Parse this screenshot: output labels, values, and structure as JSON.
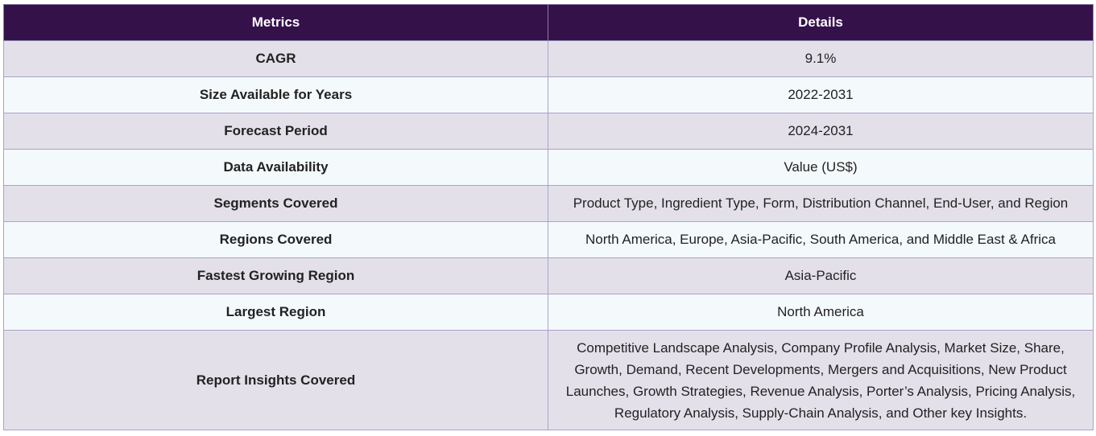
{
  "table": {
    "headers": [
      "Metrics",
      "Details"
    ],
    "rows": [
      {
        "metric": "CAGR",
        "details": "9.1%"
      },
      {
        "metric": "Size Available for Years",
        "details": "2022-2031"
      },
      {
        "metric": "Forecast Period",
        "details": "2024-2031"
      },
      {
        "metric": "Data Availability",
        "details": "Value (US$)"
      },
      {
        "metric": "Segments Covered",
        "details": "Product Type, Ingredient Type, Form, Distribution Channel, End-User, and Region"
      },
      {
        "metric": "Regions Covered",
        "details": "North America, Europe, Asia-Pacific, South America, and Middle East & Africa"
      },
      {
        "metric": "Fastest Growing Region",
        "details": "Asia-Pacific"
      },
      {
        "metric": "Largest Region",
        "details": "North America"
      },
      {
        "metric": "Report Insights Covered",
        "details": "Competitive Landscape Analysis, Company Profile Analysis, Market Size, Share, Growth, Demand, Recent Developments, Mergers and Acquisitions, New Product Launches, Growth Strategies, Revenue Analysis, Porter’s Analysis, Pricing Analysis, Regulatory Analysis, Supply-Chain Analysis, and Other key Insights."
      }
    ]
  },
  "colors": {
    "header_bg": "#35114a",
    "header_text": "#ffffff",
    "row_odd_bg": "#e3e0ea",
    "row_even_bg": "#f4f9fc",
    "border": "#a9a3c7"
  }
}
